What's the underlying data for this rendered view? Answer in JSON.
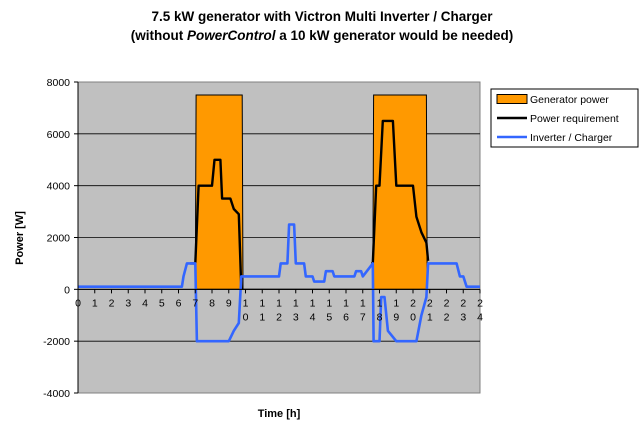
{
  "chart_data": {
    "type": "line",
    "title_line1": "7.5 kW generator with Victron Multi Inverter / Charger",
    "title_line2_prefix": "(without ",
    "title_line2_italic": "PowerControl",
    "title_line2_suffix": " a 10 kW generator would be needed)",
    "xlabel": "Time [h]",
    "ylabel": "Power [W]",
    "xlim": [
      0,
      24
    ],
    "ylim": [
      -4000,
      8000
    ],
    "yticks": [
      "8000",
      "6000",
      "4000",
      "2000",
      "0",
      "-2000",
      "-4000"
    ],
    "xticks": [
      {
        "x": 0,
        "l1": "0",
        "l2": ""
      },
      {
        "x": 1,
        "l1": "1",
        "l2": ""
      },
      {
        "x": 2,
        "l1": "2",
        "l2": ""
      },
      {
        "x": 3,
        "l1": "3",
        "l2": ""
      },
      {
        "x": 4,
        "l1": "4",
        "l2": ""
      },
      {
        "x": 5,
        "l1": "5",
        "l2": ""
      },
      {
        "x": 6,
        "l1": "6",
        "l2": ""
      },
      {
        "x": 7,
        "l1": "7",
        "l2": ""
      },
      {
        "x": 8,
        "l1": "8",
        "l2": ""
      },
      {
        "x": 9,
        "l1": "9",
        "l2": ""
      },
      {
        "x": 10,
        "l1": "1",
        "l2": "0"
      },
      {
        "x": 11,
        "l1": "1",
        "l2": "1"
      },
      {
        "x": 12,
        "l1": "1",
        "l2": "2"
      },
      {
        "x": 13,
        "l1": "1",
        "l2": "3"
      },
      {
        "x": 14,
        "l1": "1",
        "l2": "4"
      },
      {
        "x": 15,
        "l1": "1",
        "l2": "5"
      },
      {
        "x": 16,
        "l1": "1",
        "l2": "6"
      },
      {
        "x": 17,
        "l1": "1",
        "l2": "7"
      },
      {
        "x": 18,
        "l1": "1",
        "l2": "8"
      },
      {
        "x": 19,
        "l1": "1",
        "l2": "9"
      },
      {
        "x": 20,
        "l1": "2",
        "l2": "0"
      },
      {
        "x": 21,
        "l1": "2",
        "l2": "1"
      },
      {
        "x": 22,
        "l1": "2",
        "l2": "2"
      },
      {
        "x": 23,
        "l1": "2",
        "l2": "3"
      },
      {
        "x": 24,
        "l1": "2",
        "l2": "4"
      }
    ],
    "grid": "horizontal",
    "legend_position": "top-right",
    "series": [
      {
        "name": "Generator power",
        "kind": "area",
        "color": "#FF9900",
        "points": [
          [
            7,
            0
          ],
          [
            7.05,
            7500
          ],
          [
            9.8,
            7500
          ],
          [
            9.85,
            0
          ],
          [
            17.6,
            0
          ],
          [
            17.65,
            7500
          ],
          [
            20.8,
            7500
          ],
          [
            20.85,
            0
          ]
        ]
      },
      {
        "name": "Power requirement",
        "kind": "line",
        "color": "#000000",
        "segments": [
          [
            [
              6.7,
              1000
            ],
            [
              7.0,
              1000
            ],
            [
              7.2,
              4000
            ],
            [
              8.0,
              4000
            ],
            [
              8.15,
              5000
            ],
            [
              8.5,
              5000
            ],
            [
              8.6,
              3500
            ],
            [
              9.1,
              3500
            ],
            [
              9.3,
              3100
            ],
            [
              9.6,
              2900
            ],
            [
              9.75,
              0
            ]
          ],
          [
            [
              17.5,
              1000
            ],
            [
              17.6,
              1000
            ],
            [
              17.8,
              4000
            ],
            [
              18.0,
              4000
            ],
            [
              18.2,
              6500
            ],
            [
              18.8,
              6500
            ],
            [
              19.0,
              4000
            ],
            [
              20.0,
              4000
            ],
            [
              20.2,
              2800
            ],
            [
              20.5,
              2200
            ],
            [
              20.8,
              1800
            ],
            [
              20.9,
              1100
            ]
          ]
        ]
      },
      {
        "name": "Inverter / Charger",
        "kind": "line",
        "color": "#3366FF",
        "points": [
          [
            0,
            100
          ],
          [
            6.2,
            100
          ],
          [
            6.3,
            500
          ],
          [
            6.5,
            1000
          ],
          [
            7.0,
            1000
          ],
          [
            7.1,
            -2000
          ],
          [
            9.0,
            -2000
          ],
          [
            9.3,
            -1600
          ],
          [
            9.6,
            -1300
          ],
          [
            9.75,
            500
          ],
          [
            12.0,
            500
          ],
          [
            12.1,
            1000
          ],
          [
            12.5,
            1000
          ],
          [
            12.6,
            2500
          ],
          [
            12.9,
            2500
          ],
          [
            13.0,
            1000
          ],
          [
            13.5,
            1000
          ],
          [
            13.6,
            500
          ],
          [
            14.0,
            500
          ],
          [
            14.1,
            300
          ],
          [
            14.7,
            300
          ],
          [
            14.8,
            700
          ],
          [
            15.2,
            700
          ],
          [
            15.3,
            500
          ],
          [
            16.5,
            500
          ],
          [
            16.6,
            700
          ],
          [
            16.9,
            700
          ],
          [
            17.0,
            500
          ],
          [
            17.6,
            1000
          ],
          [
            17.65,
            -2000
          ],
          [
            18.0,
            -2000
          ],
          [
            18.1,
            -300
          ],
          [
            18.3,
            -300
          ],
          [
            18.5,
            -1600
          ],
          [
            19.0,
            -2000
          ],
          [
            20.2,
            -2000
          ],
          [
            20.5,
            -1000
          ],
          [
            20.8,
            -300
          ],
          [
            20.9,
            1000
          ],
          [
            22.6,
            1000
          ],
          [
            22.8,
            500
          ],
          [
            23.0,
            500
          ],
          [
            23.2,
            100
          ],
          [
            24.0,
            100
          ]
        ]
      }
    ]
  }
}
